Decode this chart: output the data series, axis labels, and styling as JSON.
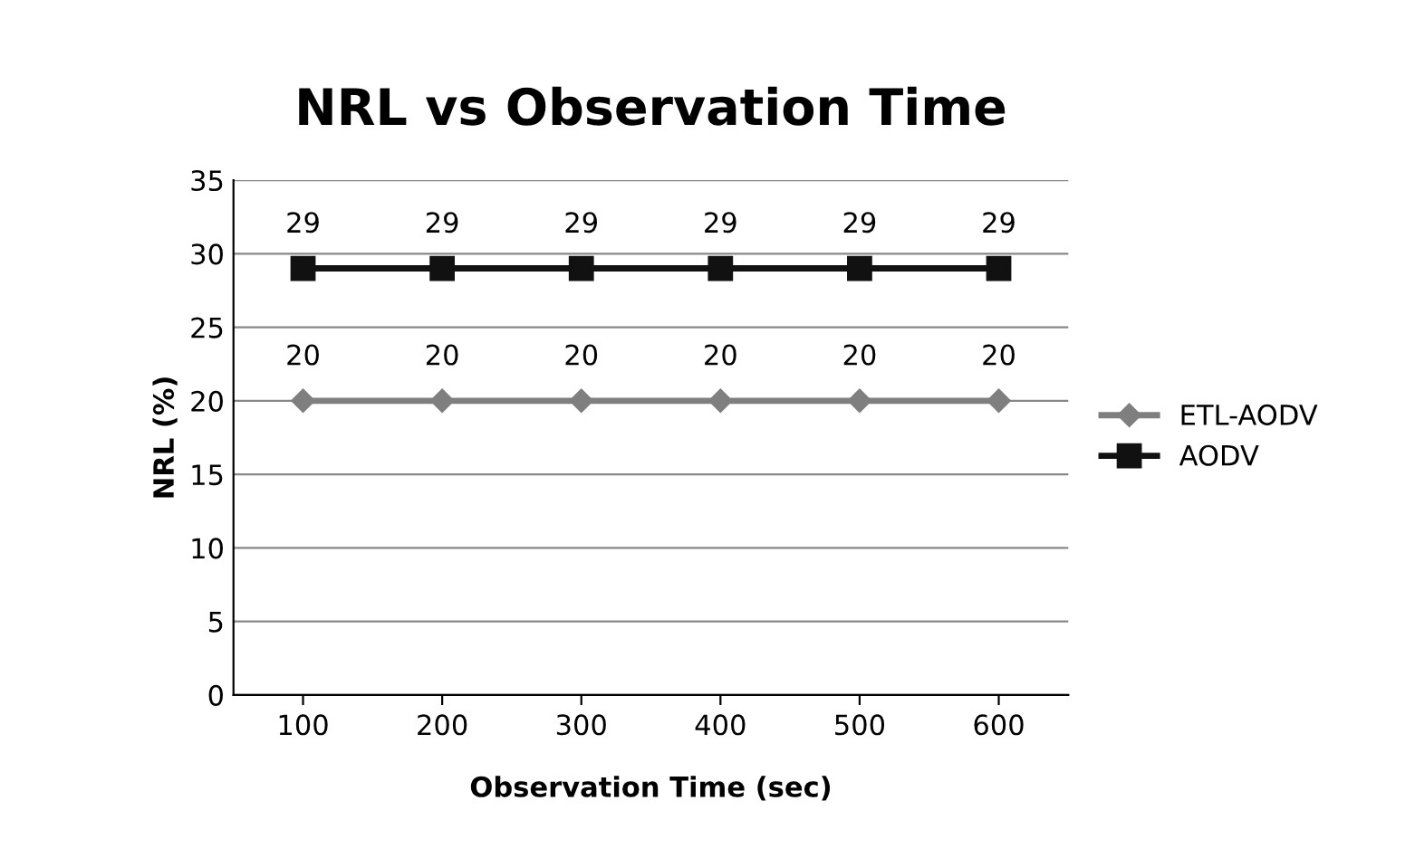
{
  "chart_data": {
    "type": "line",
    "title": "NRL vs Observation Time",
    "xlabel": "Observation Time (sec)",
    "ylabel": "NRL (%)",
    "categories": [
      "100",
      "200",
      "300",
      "400",
      "500",
      "600"
    ],
    "series": [
      {
        "name": "ETL-AODV",
        "color": "#7f7f7f",
        "marker": "diamond",
        "values": [
          20,
          20,
          20,
          20,
          20,
          20
        ]
      },
      {
        "name": "AODV",
        "color": "#111111",
        "marker": "square",
        "values": [
          29,
          29,
          29,
          29,
          29,
          29
        ]
      }
    ],
    "ylim": [
      0,
      35
    ],
    "yticks": [
      0,
      5,
      10,
      15,
      20,
      25,
      30,
      35
    ],
    "grid": "y",
    "legend": "right",
    "data_labels": true
  }
}
